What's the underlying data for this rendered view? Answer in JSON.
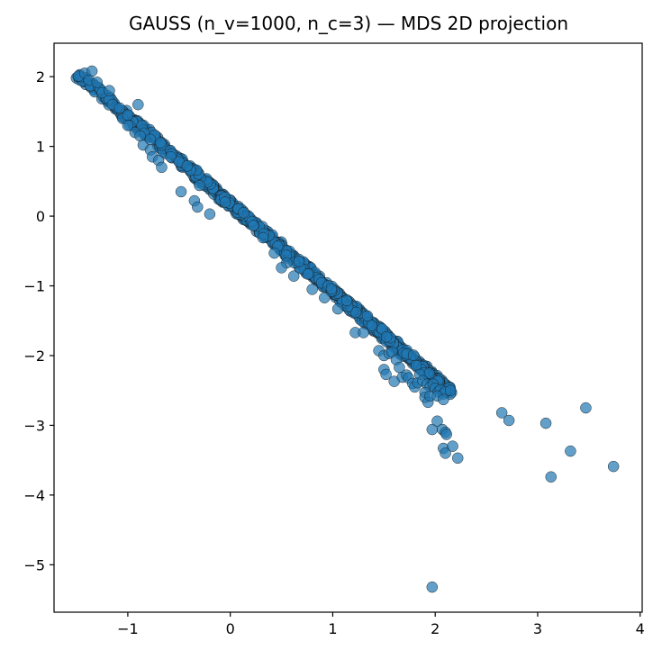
{
  "chart_data": {
    "type": "scatter",
    "title": "GAUSS (n_v=1000, n_c=3) — MDS 2D projection",
    "xlabel": "",
    "ylabel": "",
    "xlim": [
      -1.72,
      4.02
    ],
    "ylim": [
      -5.68,
      2.48
    ],
    "x_ticks": [
      -1,
      0,
      1,
      2,
      3,
      4
    ],
    "y_ticks": [
      2,
      1,
      0,
      -1,
      -2,
      -3,
      -4,
      -5
    ],
    "x_tick_labels": [
      "−1",
      "0",
      "1",
      "2",
      "3",
      "4"
    ],
    "y_tick_labels": [
      "2",
      "1",
      "0",
      "−1",
      "−2",
      "−3",
      "−4",
      "−5"
    ],
    "grid": false,
    "marker_color": "#1f77b4",
    "marker_edge_color": "#1a1a1a",
    "marker_alpha": 0.7,
    "main_band": {
      "x_from": -1.48,
      "y_from": 2.03,
      "x_to": 2.15,
      "y_to": -2.52,
      "point_count": 940
    },
    "points": [
      [
        -1.48,
        2.01
      ],
      [
        -1.42,
        2.05
      ],
      [
        -1.35,
        2.08
      ],
      [
        -1.38,
        1.95
      ],
      [
        -1.3,
        1.92
      ],
      [
        -1.25,
        1.77
      ],
      [
        -1.18,
        1.8
      ],
      [
        -1.15,
        1.6
      ],
      [
        -1.08,
        1.55
      ],
      [
        -1.05,
        1.4
      ],
      [
        -1.0,
        1.45
      ],
      [
        -0.98,
        1.3
      ],
      [
        -0.93,
        1.2
      ],
      [
        -0.88,
        1.15
      ],
      [
        -0.85,
        1.02
      ],
      [
        -0.78,
        0.95
      ],
      [
        -0.76,
        0.85
      ],
      [
        -0.7,
        0.8
      ],
      [
        -0.67,
        0.7
      ],
      [
        -0.78,
        1.1
      ],
      [
        -0.68,
        1.05
      ],
      [
        -0.58,
        0.85
      ],
      [
        -0.5,
        0.78
      ],
      [
        -0.42,
        0.72
      ],
      [
        -0.48,
        0.35
      ],
      [
        -0.35,
        0.22
      ],
      [
        -0.32,
        0.13
      ],
      [
        -0.2,
        0.03
      ],
      [
        -0.3,
        0.44
      ],
      [
        0.43,
        -0.53
      ],
      [
        0.55,
        -0.67
      ],
      [
        0.62,
        -0.86
      ],
      [
        0.8,
        -1.05
      ],
      [
        0.92,
        -1.17
      ],
      [
        0.5,
        -0.74
      ],
      [
        1.05,
        -1.33
      ],
      [
        0.13,
        0.05
      ],
      [
        -0.05,
        0.2
      ],
      [
        0.32,
        -0.31
      ],
      [
        -0.9,
        1.6
      ],
      [
        -1.0,
        1.3
      ],
      [
        1.22,
        -1.67
      ],
      [
        1.3,
        -1.67
      ],
      [
        1.45,
        -1.93
      ],
      [
        1.5,
        -2.0
      ],
      [
        1.55,
        -1.97
      ],
      [
        1.58,
        -1.95
      ],
      [
        1.62,
        -2.06
      ],
      [
        1.65,
        -2.17
      ],
      [
        1.5,
        -2.2
      ],
      [
        1.52,
        -2.27
      ],
      [
        1.6,
        -2.37
      ],
      [
        1.68,
        -2.31
      ],
      [
        1.72,
        -2.28
      ],
      [
        1.74,
        -2.32
      ],
      [
        1.78,
        -2.4
      ],
      [
        1.8,
        -2.45
      ],
      [
        1.83,
        -2.39
      ],
      [
        1.85,
        -2.27
      ],
      [
        1.88,
        -2.36
      ],
      [
        1.92,
        -2.41
      ],
      [
        1.95,
        -2.45
      ],
      [
        1.98,
        -2.41
      ],
      [
        2.0,
        -2.47
      ],
      [
        2.03,
        -2.52
      ],
      [
        2.05,
        -2.49
      ],
      [
        2.08,
        -2.55
      ],
      [
        2.1,
        -2.52
      ],
      [
        2.15,
        -2.5
      ],
      [
        1.9,
        -2.53
      ],
      [
        1.9,
        -2.6
      ],
      [
        1.93,
        -2.67
      ],
      [
        1.95,
        -2.58
      ],
      [
        2.02,
        -2.58
      ],
      [
        2.08,
        -2.63
      ],
      [
        1.97,
        -3.06
      ],
      [
        2.02,
        -2.94
      ],
      [
        2.07,
        -3.06
      ],
      [
        2.1,
        -3.1
      ],
      [
        2.11,
        -3.13
      ],
      [
        2.08,
        -3.33
      ],
      [
        2.1,
        -3.4
      ],
      [
        2.17,
        -3.3
      ],
      [
        2.22,
        -3.47
      ],
      [
        2.65,
        -2.82
      ],
      [
        2.72,
        -2.93
      ],
      [
        3.08,
        -2.97
      ],
      [
        3.13,
        -3.74
      ],
      [
        3.32,
        -3.37
      ],
      [
        3.47,
        -2.75
      ],
      [
        3.74,
        -3.59
      ],
      [
        1.97,
        -5.32
      ]
    ]
  }
}
